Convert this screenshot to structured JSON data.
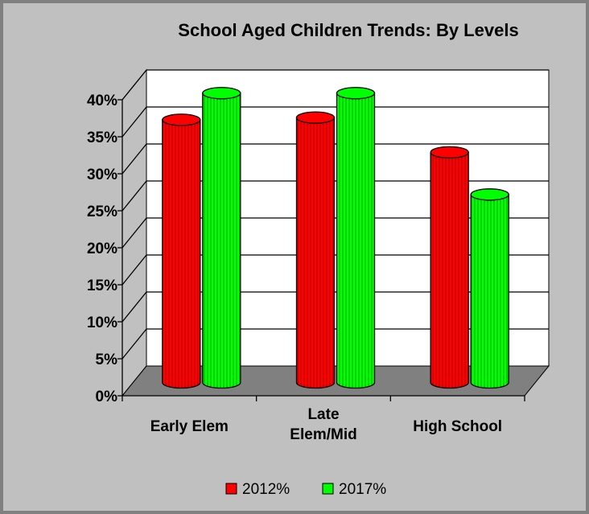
{
  "chart_data": {
    "type": "bar",
    "title": "School Aged Children Trends: By Levels",
    "categories": [
      [
        "Early Elem"
      ],
      [
        "Late",
        "Elem/Mid"
      ],
      [
        "High School"
      ]
    ],
    "series": [
      {
        "name": "2012%",
        "values": [
          35.5,
          35.8,
          31.1
        ],
        "color": "#ff0000"
      },
      {
        "name": "2017%",
        "values": [
          39.1,
          39.1,
          25.4
        ],
        "color": "#00ff00"
      }
    ],
    "ylim": [
      0,
      40
    ],
    "yticks": [
      "0%",
      "5%",
      "10%",
      "15%",
      "20%",
      "25%",
      "30%",
      "35%",
      "40%"
    ],
    "grid": true,
    "legend_position": "bottom",
    "colors": {
      "background": "#c0c0c0",
      "frame": "#808080",
      "plot_back": "#ffffff",
      "floor": "#808080"
    }
  }
}
